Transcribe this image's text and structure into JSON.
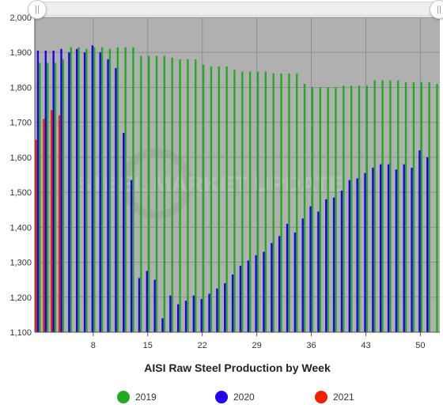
{
  "chart_data": {
    "type": "bar",
    "title": "AISI Raw Steel Production by Week",
    "xlabel": "AISI Raw Steel Production by Week",
    "ylabel": "",
    "ylim": [
      1100,
      2000
    ],
    "yticks": [
      "1,100",
      "1,200",
      "1,300",
      "1,400",
      "1,500",
      "1,600",
      "1,700",
      "1,800",
      "1,900",
      "2,000"
    ],
    "xticks": [
      8,
      15,
      22,
      29,
      36,
      43,
      50
    ],
    "grid": true,
    "legend": "bottom",
    "watermark": "STEEL MARKET UPDATE",
    "series": [
      {
        "name": "2019",
        "color": "#22aa22",
        "values": [
          1870,
          1870,
          1870,
          1880,
          1915,
          1915,
          1910,
          1915,
          1915,
          1910,
          1915,
          1915,
          1915,
          1890,
          1890,
          1890,
          1890,
          1885,
          1880,
          1880,
          1880,
          1865,
          1860,
          1860,
          1860,
          1850,
          1845,
          1845,
          1845,
          1845,
          1840,
          1840,
          1840,
          1840,
          1810,
          1800,
          1800,
          1800,
          1800,
          1805,
          1805,
          1805,
          1805,
          1820,
          1820,
          1820,
          1820,
          1815,
          1815,
          1815,
          1815,
          1810
        ]
      },
      {
        "name": "2020",
        "color": "#2200ee",
        "values": [
          1905,
          1905,
          1905,
          1910,
          1900,
          1910,
          1900,
          1920,
          1900,
          1880,
          1855,
          1670,
          1535,
          1255,
          1275,
          1250,
          1140,
          1205,
          1180,
          1190,
          1205,
          1195,
          1210,
          1225,
          1240,
          1265,
          1290,
          1305,
          1320,
          1330,
          1355,
          1375,
          1410,
          1385,
          1425,
          1460,
          1445,
          1480,
          1485,
          1505,
          1535,
          1540,
          1555,
          1570,
          1580,
          1580,
          1565,
          1580,
          1570,
          1620,
          1600
        ]
      },
      {
        "name": "2021",
        "color": "#ee2200",
        "values": [
          1650,
          1710,
          1735,
          1720
        ]
      }
    ]
  },
  "legend_items": [
    {
      "label": "2019",
      "color": "#22aa22"
    },
    {
      "label": "2020",
      "color": "#2200ee"
    },
    {
      "label": "2021",
      "color": "#ee2200"
    }
  ],
  "scroll_handle_glyph": "||"
}
